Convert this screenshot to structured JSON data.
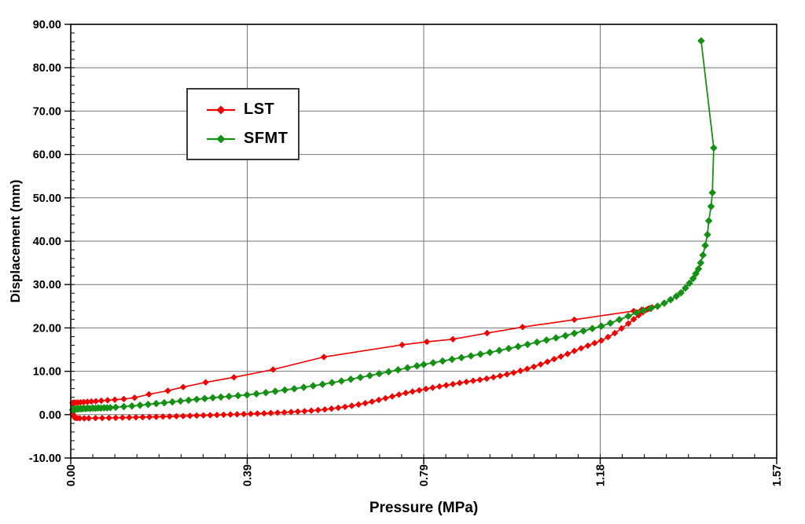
{
  "chart_data": {
    "type": "line",
    "title": "",
    "xlabel": "Pressure (MPa)",
    "ylabel": "Displacement (mm)",
    "x_axis": {
      "min": 0,
      "max": 1.57,
      "major_tick_labels": [
        "0.00",
        "0.39",
        "0.79",
        "1.18",
        "1.57"
      ],
      "minor_per_major": 8,
      "tick_label_rotation_deg": -90
    },
    "y_axis": {
      "min": -10,
      "max": 90,
      "major_step": 10,
      "major_tick_labels": [
        "90.00",
        "80.00",
        "70.00",
        "60.00",
        "50.00",
        "40.00",
        "30.00",
        "20.00",
        "10.00",
        "0.00",
        "-10.00"
      ],
      "minor_per_major": 5
    },
    "grid": {
      "horizontal": true,
      "vertical": true,
      "color": "#747474"
    },
    "legend": {
      "position": "inside-top-left",
      "border_color": "#3a3a3a",
      "background": "#ffffff"
    },
    "series": [
      {
        "name": "LST",
        "color": "#f20000",
        "marker": "diamond",
        "marker_half_size": 4.2,
        "line_width": 1.6,
        "points": [
          [
            0.004,
            0.2
          ],
          [
            0.005,
            -0.1
          ],
          [
            0.006,
            -0.4
          ],
          [
            0.008,
            -0.6
          ],
          [
            0.01,
            -0.72
          ],
          [
            0.014,
            -0.8
          ],
          [
            0.02,
            -0.84
          ],
          [
            0.03,
            -0.85
          ],
          [
            0.04,
            -0.83
          ],
          [
            0.055,
            -0.8
          ],
          [
            0.07,
            -0.78
          ],
          [
            0.085,
            -0.75
          ],
          [
            0.1,
            -0.72
          ],
          [
            0.115,
            -0.69
          ],
          [
            0.13,
            -0.66
          ],
          [
            0.145,
            -0.62
          ],
          [
            0.16,
            -0.58
          ],
          [
            0.175,
            -0.54
          ],
          [
            0.19,
            -0.5
          ],
          [
            0.205,
            -0.46
          ],
          [
            0.22,
            -0.42
          ],
          [
            0.235,
            -0.37
          ],
          [
            0.25,
            -0.32
          ],
          [
            0.265,
            -0.27
          ],
          [
            0.28,
            -0.22
          ],
          [
            0.295,
            -0.17
          ],
          [
            0.31,
            -0.12
          ],
          [
            0.325,
            -0.07
          ],
          [
            0.34,
            -0.02
          ],
          [
            0.355,
            0.03
          ],
          [
            0.37,
            0.08
          ],
          [
            0.385,
            0.13
          ],
          [
            0.4,
            0.19
          ],
          [
            0.415,
            0.25
          ],
          [
            0.43,
            0.31
          ],
          [
            0.445,
            0.38
          ],
          [
            0.46,
            0.45
          ],
          [
            0.475,
            0.53
          ],
          [
            0.49,
            0.61
          ],
          [
            0.505,
            0.7
          ],
          [
            0.52,
            0.8
          ],
          [
            0.535,
            0.92
          ],
          [
            0.55,
            1.05
          ],
          [
            0.565,
            1.2
          ],
          [
            0.58,
            1.38
          ],
          [
            0.595,
            1.58
          ],
          [
            0.61,
            1.8
          ],
          [
            0.625,
            2.05
          ],
          [
            0.64,
            2.33
          ],
          [
            0.655,
            2.65
          ],
          [
            0.67,
            3.0
          ],
          [
            0.685,
            3.38
          ],
          [
            0.7,
            3.78
          ],
          [
            0.715,
            4.2
          ],
          [
            0.73,
            4.62
          ],
          [
            0.745,
            5.0
          ],
          [
            0.76,
            5.32
          ],
          [
            0.775,
            5.62
          ],
          [
            0.79,
            5.92
          ],
          [
            0.805,
            6.22
          ],
          [
            0.82,
            6.5
          ],
          [
            0.835,
            6.78
          ],
          [
            0.85,
            7.05
          ],
          [
            0.865,
            7.3
          ],
          [
            0.88,
            7.55
          ],
          [
            0.895,
            7.8
          ],
          [
            0.91,
            8.05
          ],
          [
            0.925,
            8.32
          ],
          [
            0.94,
            8.62
          ],
          [
            0.955,
            8.95
          ],
          [
            0.97,
            9.3
          ],
          [
            0.985,
            9.68
          ],
          [
            1.0,
            10.1
          ],
          [
            1.015,
            10.55
          ],
          [
            1.03,
            11.05
          ],
          [
            1.045,
            11.6
          ],
          [
            1.06,
            12.2
          ],
          [
            1.075,
            12.8
          ],
          [
            1.09,
            13.4
          ],
          [
            1.105,
            14.0
          ],
          [
            1.12,
            14.7
          ],
          [
            1.135,
            15.3
          ],
          [
            1.15,
            15.9
          ],
          [
            1.165,
            16.5
          ],
          [
            1.18,
            17.1
          ],
          [
            1.195,
            17.9
          ],
          [
            1.21,
            18.8
          ],
          [
            1.225,
            19.9
          ],
          [
            1.24,
            21.0
          ],
          [
            1.252,
            22.0
          ],
          [
            1.263,
            22.9
          ],
          [
            1.272,
            23.6
          ],
          [
            1.28,
            24.15
          ],
          [
            1.287,
            24.5
          ],
          [
            1.293,
            24.7
          ],
          [
            1.284,
            24.4
          ],
          [
            1.27,
            24.2
          ],
          [
            1.252,
            23.9
          ],
          [
            1.12,
            21.9
          ],
          [
            1.005,
            20.2
          ],
          [
            0.926,
            18.8
          ],
          [
            0.85,
            17.4
          ],
          [
            0.792,
            16.8
          ],
          [
            0.737,
            16.1
          ],
          [
            0.563,
            13.3
          ],
          [
            0.45,
            10.4
          ],
          [
            0.363,
            8.6
          ],
          [
            0.3,
            7.45
          ],
          [
            0.25,
            6.35
          ],
          [
            0.216,
            5.5
          ],
          [
            0.174,
            4.7
          ],
          [
            0.142,
            3.9
          ],
          [
            0.118,
            3.6
          ],
          [
            0.098,
            3.45
          ],
          [
            0.082,
            3.32
          ],
          [
            0.068,
            3.2
          ],
          [
            0.056,
            3.1
          ],
          [
            0.046,
            3.02
          ],
          [
            0.037,
            2.95
          ],
          [
            0.029,
            2.9
          ],
          [
            0.022,
            2.85
          ],
          [
            0.016,
            2.8
          ],
          [
            0.011,
            2.77
          ],
          [
            0.007,
            2.75
          ],
          [
            0.004,
            2.72
          ]
        ]
      },
      {
        "name": "SFMT",
        "color": "#149114",
        "marker": "diamond",
        "marker_half_size": 4.8,
        "line_width": 1.8,
        "points": [
          [
            0.004,
            1.1
          ],
          [
            0.007,
            1.25
          ],
          [
            0.01,
            1.2
          ],
          [
            0.013,
            1.35
          ],
          [
            0.016,
            1.28
          ],
          [
            0.02,
            1.4
          ],
          [
            0.024,
            1.32
          ],
          [
            0.028,
            1.45
          ],
          [
            0.033,
            1.38
          ],
          [
            0.038,
            1.5
          ],
          [
            0.043,
            1.42
          ],
          [
            0.049,
            1.52
          ],
          [
            0.055,
            1.46
          ],
          [
            0.061,
            1.55
          ],
          [
            0.067,
            1.5
          ],
          [
            0.074,
            1.58
          ],
          [
            0.081,
            1.55
          ],
          [
            0.088,
            1.62
          ],
          [
            0.1,
            1.7
          ],
          [
            0.118,
            1.85
          ],
          [
            0.136,
            2.0
          ],
          [
            0.154,
            2.18
          ],
          [
            0.172,
            2.36
          ],
          [
            0.19,
            2.55
          ],
          [
            0.208,
            2.74
          ],
          [
            0.226,
            2.94
          ],
          [
            0.244,
            3.14
          ],
          [
            0.262,
            3.34
          ],
          [
            0.28,
            3.54
          ],
          [
            0.298,
            3.72
          ],
          [
            0.316,
            3.9
          ],
          [
            0.334,
            4.06
          ],
          [
            0.352,
            4.2
          ],
          [
            0.372,
            4.38
          ],
          [
            0.392,
            4.55
          ],
          [
            0.413,
            4.8
          ],
          [
            0.434,
            5.08
          ],
          [
            0.455,
            5.38
          ],
          [
            0.476,
            5.68
          ],
          [
            0.497,
            5.98
          ],
          [
            0.518,
            6.3
          ],
          [
            0.539,
            6.64
          ],
          [
            0.56,
            7.0
          ],
          [
            0.581,
            7.38
          ],
          [
            0.602,
            7.76
          ],
          [
            0.623,
            8.16
          ],
          [
            0.644,
            8.58
          ],
          [
            0.665,
            9.0
          ],
          [
            0.686,
            9.44
          ],
          [
            0.707,
            9.9
          ],
          [
            0.728,
            10.35
          ],
          [
            0.749,
            10.8
          ],
          [
            0.77,
            11.25
          ],
          [
            0.785,
            11.55
          ],
          [
            0.806,
            11.95
          ],
          [
            0.827,
            12.35
          ],
          [
            0.848,
            12.75
          ],
          [
            0.869,
            13.15
          ],
          [
            0.89,
            13.55
          ],
          [
            0.911,
            13.95
          ],
          [
            0.932,
            14.35
          ],
          [
            0.953,
            14.8
          ],
          [
            0.974,
            15.25
          ],
          [
            0.995,
            15.7
          ],
          [
            1.016,
            16.2
          ],
          [
            1.037,
            16.7
          ],
          [
            1.058,
            17.2
          ],
          [
            1.079,
            17.7
          ],
          [
            1.1,
            18.2
          ],
          [
            1.12,
            18.75
          ],
          [
            1.14,
            19.3
          ],
          [
            1.16,
            19.85
          ],
          [
            1.18,
            20.4
          ],
          [
            1.2,
            21.1
          ],
          [
            1.22,
            21.9
          ],
          [
            1.24,
            22.7
          ],
          [
            1.258,
            23.5
          ],
          [
            1.274,
            24.0
          ],
          [
            1.29,
            24.5
          ],
          [
            1.305,
            25.0
          ],
          [
            1.32,
            25.7
          ],
          [
            1.334,
            26.5
          ],
          [
            1.347,
            27.3
          ],
          [
            1.357,
            28.1
          ],
          [
            1.367,
            29.2
          ],
          [
            1.376,
            30.3
          ],
          [
            1.384,
            31.4
          ],
          [
            1.39,
            32.5
          ],
          [
            1.396,
            33.6
          ],
          [
            1.401,
            35.0
          ],
          [
            1.406,
            36.8
          ],
          [
            1.411,
            39.0
          ],
          [
            1.416,
            41.5
          ],
          [
            1.419,
            44.7
          ],
          [
            1.424,
            48.0
          ],
          [
            1.427,
            51.2
          ],
          [
            1.43,
            61.5
          ],
          [
            1.402,
            86.2
          ]
        ]
      }
    ]
  }
}
